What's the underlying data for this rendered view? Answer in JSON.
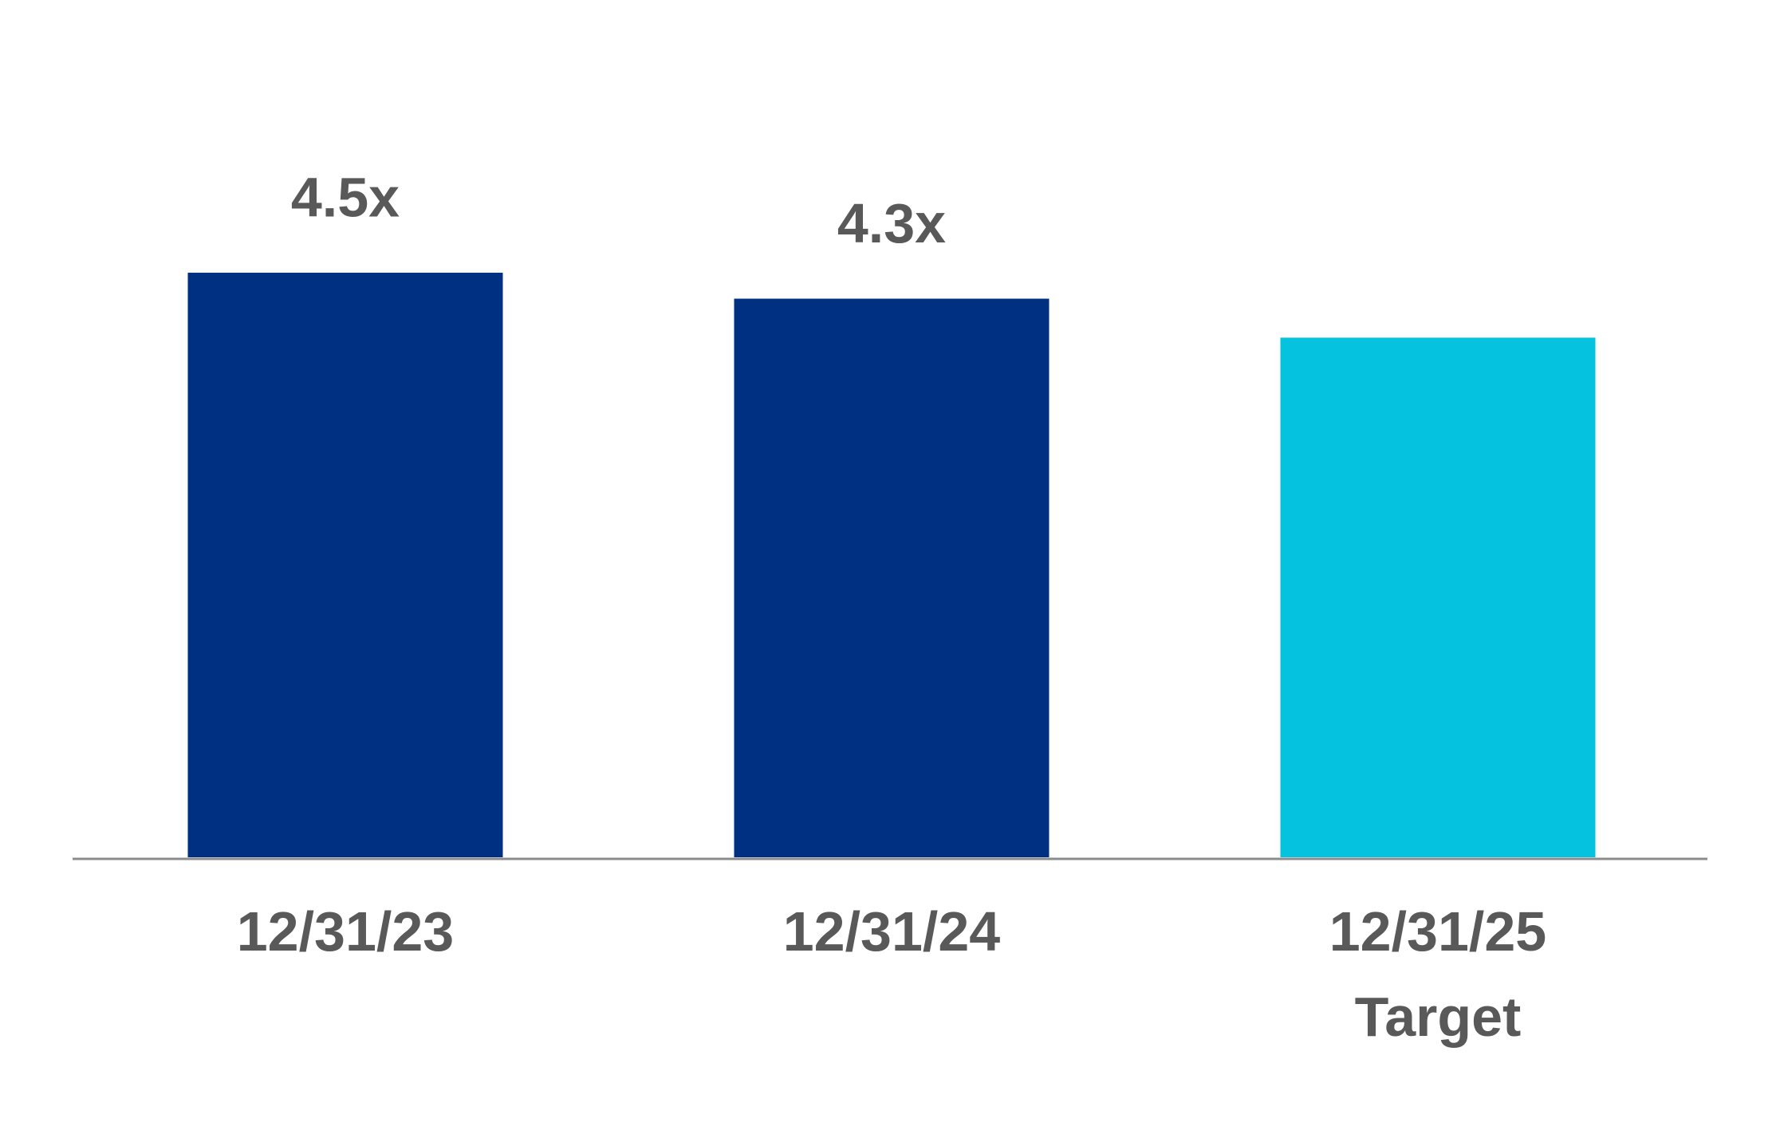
{
  "chart_data": {
    "type": "bar",
    "categories": [
      [
        "12/31/23"
      ],
      [
        "12/31/24"
      ],
      [
        "12/31/25",
        "Target"
      ]
    ],
    "values": [
      4.5,
      4.3,
      4.0
    ],
    "value_labels": [
      "4.5x",
      "4.3x",
      null
    ],
    "colors": [
      "#003082",
      "#003082",
      "#05C3DE"
    ],
    "axis_color": "#8c8c8c"
  }
}
